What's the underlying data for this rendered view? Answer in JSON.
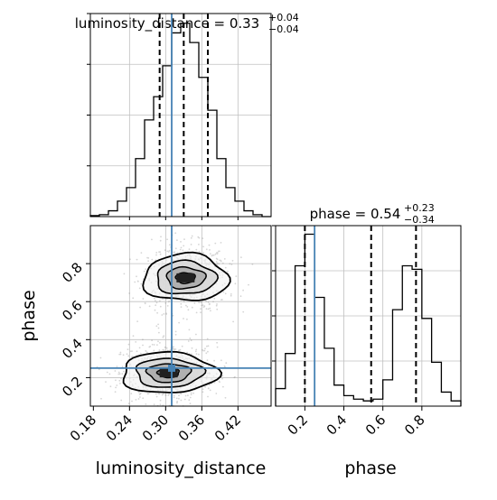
{
  "chart_data": [
    {
      "type": "histogram",
      "panel": "luminosity_distance marginal",
      "title": {
        "prefix": "luminosity_distance = ",
        "median": "0.33",
        "plus": "+0.04",
        "minus": "−0.04"
      },
      "xlim": [
        0.175,
        0.475
      ],
      "bin_edges": [
        0.175,
        0.19,
        0.205,
        0.22,
        0.235,
        0.25,
        0.265,
        0.28,
        0.295,
        0.31,
        0.325,
        0.34,
        0.355,
        0.37,
        0.385,
        0.4,
        0.415,
        0.43,
        0.445,
        0.46,
        0.475
      ],
      "counts": [
        0.5,
        1,
        3,
        8,
        15,
        30,
        50,
        62,
        78,
        95,
        100,
        90,
        72,
        55,
        30,
        15,
        8,
        3,
        1,
        0
      ],
      "quantile_lines": [
        0.29,
        0.33,
        0.37
      ],
      "truth": 0.31,
      "grid": true
    },
    {
      "type": "histogram",
      "panel": "phase marginal",
      "title": {
        "prefix": "phase = ",
        "median": "0.54",
        "plus": "+0.23",
        "minus": "−0.34"
      },
      "xlim": [
        0.05,
        1.0
      ],
      "bin_edges": [
        0.05,
        0.1,
        0.15,
        0.2,
        0.25,
        0.3,
        0.35,
        0.4,
        0.45,
        0.5,
        0.55,
        0.6,
        0.65,
        0.7,
        0.75,
        0.8,
        0.85,
        0.9,
        0.95,
        1.0
      ],
      "counts": [
        10,
        30,
        80,
        98,
        62,
        33,
        12,
        6,
        4,
        3,
        4,
        15,
        55,
        80,
        78,
        50,
        25,
        8,
        3
      ],
      "quantile_lines": [
        0.2,
        0.54,
        0.77
      ],
      "truth": 0.25,
      "grid": true
    },
    {
      "type": "contour",
      "panel": "joint luminosity_distance vs phase",
      "x_label": "luminosity_distance",
      "y_label": "phase",
      "xlim": [
        0.175,
        0.475
      ],
      "ylim": [
        0.05,
        1.0
      ],
      "x_ticks": [
        "0.18",
        "0.24",
        "0.30",
        "0.36",
        "0.42"
      ],
      "y_ticks": [
        "0.2",
        "0.4",
        "0.6",
        "0.8"
      ],
      "modes": [
        {
          "center": [
            0.333,
            0.725
          ],
          "spread": [
            0.032,
            0.075
          ]
        },
        {
          "center": [
            0.305,
            0.225
          ],
          "spread": [
            0.036,
            0.065
          ]
        }
      ],
      "truth": [
        0.31,
        0.25
      ]
    },
    {
      "type": "axis",
      "panel": "phase x-axis",
      "x_label": "phase",
      "x_ticks": [
        "0.2",
        "0.4",
        "0.6",
        "0.8"
      ]
    }
  ],
  "colors": {
    "truth": "#4682b4",
    "lines": "#000000",
    "grid": "#c0c0c0",
    "scatter": "#888888"
  }
}
